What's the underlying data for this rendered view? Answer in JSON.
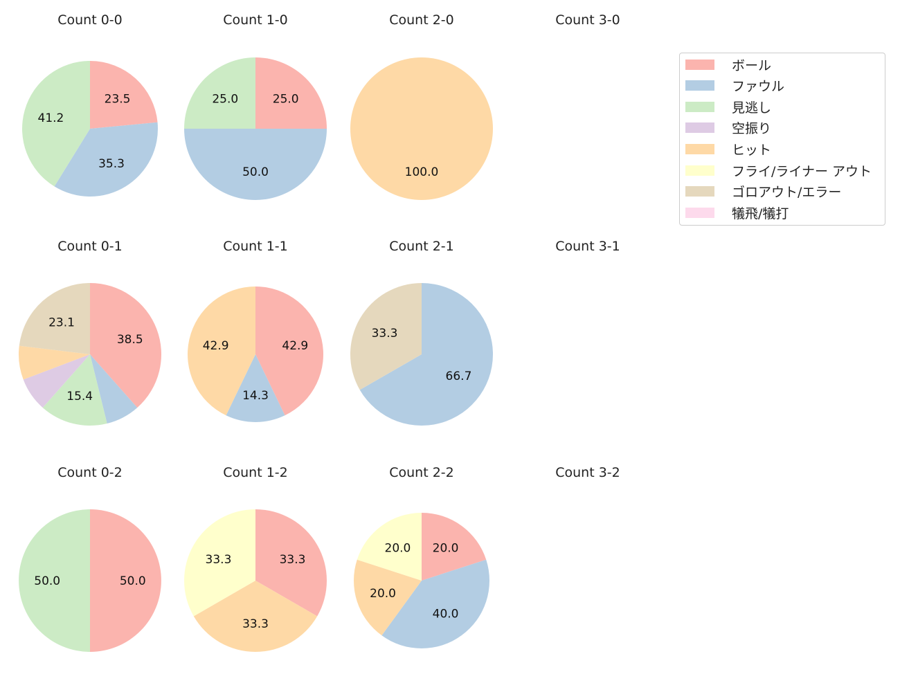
{
  "chart_data": {
    "type": "pie",
    "legend_position": "right",
    "categories": [
      "ボール",
      "ファウル",
      "見逃し",
      "空振り",
      "ヒット",
      "フライ/ライナー アウト",
      "ゴロアウト/エラー",
      "犠飛/犠打"
    ],
    "colors": [
      "#fbb4ae",
      "#b3cde3",
      "#ccebc5",
      "#decbe4",
      "#fed9a6",
      "#ffffcc",
      "#e5d8bd",
      "#fddaec"
    ],
    "charts": [
      {
        "title": "Count 0-0",
        "values": [
          23.5,
          35.3,
          41.2,
          0,
          0,
          0,
          0,
          0
        ]
      },
      {
        "title": "Count 1-0",
        "values": [
          25.0,
          50.0,
          25.0,
          0,
          0,
          0,
          0,
          0
        ]
      },
      {
        "title": "Count 2-0",
        "values": [
          0,
          0,
          0,
          0,
          100.0,
          0,
          0,
          0
        ]
      },
      {
        "title": "Count 3-0",
        "values": []
      },
      {
        "title": "Count 0-1",
        "values": [
          38.5,
          7.7,
          15.4,
          7.7,
          7.7,
          0,
          23.1,
          0
        ]
      },
      {
        "title": "Count 1-1",
        "values": [
          42.9,
          14.3,
          0,
          0,
          42.9,
          0,
          0,
          0
        ]
      },
      {
        "title": "Count 2-1",
        "values": [
          0,
          66.7,
          0,
          0,
          0,
          0,
          33.3,
          0
        ]
      },
      {
        "title": "Count 3-1",
        "values": []
      },
      {
        "title": "Count 0-2",
        "values": [
          50.0,
          0,
          50.0,
          0,
          0,
          0,
          0,
          0
        ]
      },
      {
        "title": "Count 1-2",
        "values": [
          33.3,
          0,
          0,
          0,
          33.3,
          33.3,
          0,
          0
        ]
      },
      {
        "title": "Count 2-2",
        "values": [
          20.0,
          40.0,
          0,
          0,
          20.0,
          20.0,
          0,
          0
        ]
      },
      {
        "title": "Count 3-2",
        "values": []
      }
    ]
  }
}
